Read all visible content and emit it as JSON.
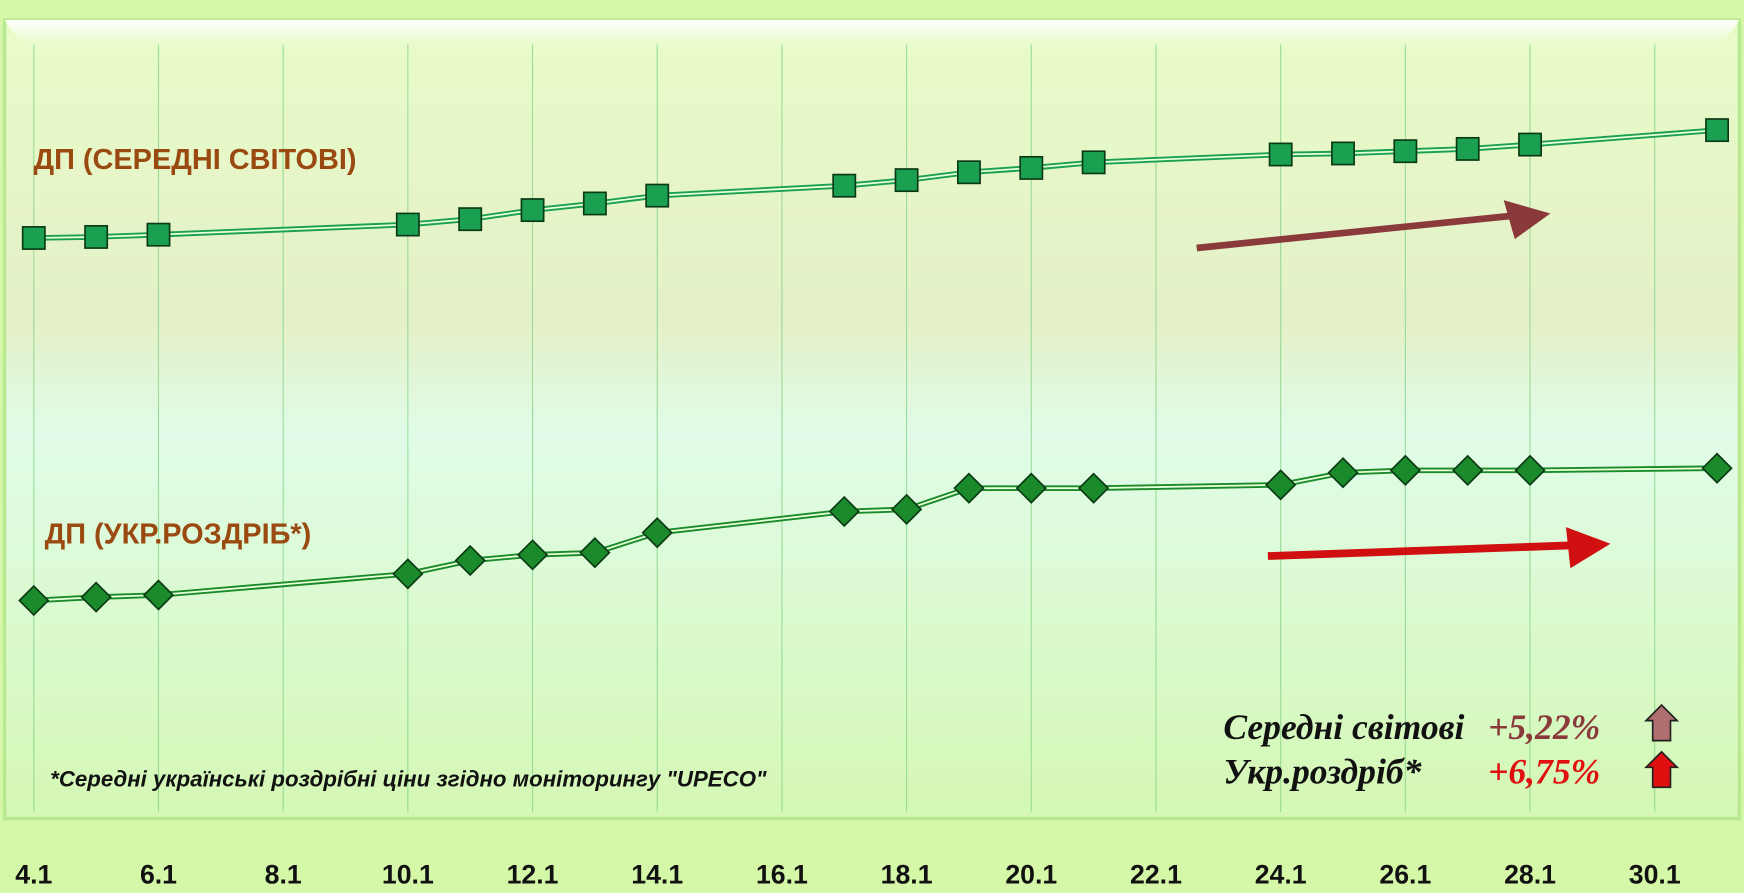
{
  "chart_data": {
    "type": "line",
    "x": [
      4,
      5,
      6,
      10,
      11,
      12,
      13,
      14,
      17,
      18,
      19,
      20,
      21,
      24,
      25,
      26,
      27,
      28,
      31
    ],
    "xlim": [
      3.46,
      31.43
    ],
    "xticks": [
      {
        "value": 4,
        "label": "4.1"
      },
      {
        "value": 6,
        "label": "6.1"
      },
      {
        "value": 8,
        "label": "8.1"
      },
      {
        "value": 10,
        "label": "10.1"
      },
      {
        "value": 12,
        "label": "12.1"
      },
      {
        "value": 14,
        "label": "14.1"
      },
      {
        "value": 16,
        "label": "16.1"
      },
      {
        "value": 18,
        "label": "18.1"
      },
      {
        "value": 20,
        "label": "20.1"
      },
      {
        "value": 22,
        "label": "22.1"
      },
      {
        "value": 24,
        "label": "24.1"
      },
      {
        "value": 26,
        "label": "26.1"
      },
      {
        "value": 28,
        "label": "28.1"
      },
      {
        "value": 30,
        "label": "30.1"
      }
    ],
    "ylim": [
      72.23,
      110.44
    ],
    "y2lim": [
      89.22,
      129.5
    ],
    "grid": true,
    "series": [
      {
        "name": "ДП (СЕРЕДНІ СВІТОВІ)",
        "color": "#1aa050",
        "marker": "square",
        "values": [
          100,
          100.05,
          100.16,
          100.65,
          100.91,
          101.35,
          101.67,
          102.05,
          102.53,
          102.8,
          103.18,
          103.39,
          103.66,
          104.04,
          104.09,
          104.2,
          104.31,
          104.52,
          105.22
        ]
      },
      {
        "name": "ДП (УКР.РОЗДРІБ*)",
        "color": "#1a8a2a",
        "marker": "diamond",
        "axis": "y2",
        "values": [
          100,
          100.17,
          100.28,
          101.36,
          102.04,
          102.33,
          102.44,
          103.46,
          104.54,
          104.65,
          105.73,
          105.73,
          105.73,
          105.9,
          106.52,
          106.64,
          106.64,
          106.64,
          106.75
        ]
      }
    ],
    "footnote": "*Середні українські роздрібні ціни згідно моніторингу \"UPECO\"",
    "summary": [
      {
        "label": "Середні світові",
        "change": "+5,22%",
        "color": "#8a3a3a"
      },
      {
        "label": "Укр.роздріб*",
        "change": "+6,75%",
        "color": "#e01010"
      }
    ]
  }
}
